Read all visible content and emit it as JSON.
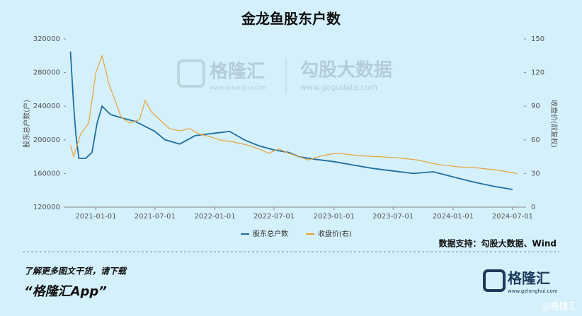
{
  "chart_data": {
    "type": "line",
    "title": "金龙鱼股东户数",
    "y_label": "股东总户数(户)",
    "y2_label": "收盘价(前复权)",
    "xlim": [
      "2020-10-01",
      "2024-08-05"
    ],
    "xticks": [
      "2021-01-01",
      "2021-07-01",
      "2022-01-01",
      "2022-07-01",
      "2023-01-01",
      "2023-07-01",
      "2024-01-01",
      "2024-07-01"
    ],
    "ylim": [
      120000,
      320000
    ],
    "yticks": [
      120000,
      160000,
      200000,
      240000,
      280000,
      320000
    ],
    "y2lim": [
      0,
      150
    ],
    "y2ticks": [
      0,
      30,
      60,
      90,
      120,
      150
    ],
    "legend": "bottom",
    "series": [
      {
        "name": "股东总户数",
        "color": "#1f6f9f",
        "x": [
          "2020-10-15",
          "2020-10-25",
          "2020-11-01",
          "2020-11-10",
          "2020-12-01",
          "2020-12-20",
          "2021-01-05",
          "2021-01-20",
          "2021-02-15",
          "2021-04-01",
          "2021-05-01",
          "2021-06-01",
          "2021-07-01",
          "2021-08-01",
          "2021-09-15",
          "2021-11-01",
          "2022-01-01",
          "2022-02-15",
          "2022-04-01",
          "2022-05-15",
          "2022-07-01",
          "2022-08-15",
          "2022-09-15",
          "2022-11-01",
          "2023-01-01",
          "2023-03-01",
          "2023-05-01",
          "2023-07-01",
          "2023-09-01",
          "2023-11-01",
          "2024-01-01",
          "2024-03-01",
          "2024-05-01",
          "2024-07-01"
        ],
        "values": [
          305000,
          240000,
          205000,
          178000,
          178000,
          185000,
          220000,
          240000,
          230000,
          225000,
          222000,
          216000,
          210000,
          200000,
          195000,
          205000,
          208000,
          210000,
          200000,
          193000,
          188000,
          185000,
          180000,
          177000,
          174000,
          170000,
          166000,
          163000,
          160000,
          162000,
          156000,
          150000,
          145000,
          141000
        ]
      },
      {
        "name": "收盘价(右)",
        "color": "#e8a33a",
        "axis": "y2",
        "x": [
          "2020-10-15",
          "2020-10-25",
          "2020-11-15",
          "2020-12-10",
          "2021-01-01",
          "2021-01-20",
          "2021-02-10",
          "2021-03-01",
          "2021-03-20",
          "2021-04-15",
          "2021-05-15",
          "2021-06-01",
          "2021-06-20",
          "2021-07-15",
          "2021-08-15",
          "2021-09-15",
          "2021-10-15",
          "2021-11-15",
          "2021-12-15",
          "2022-01-15",
          "2022-03-01",
          "2022-04-15",
          "2022-05-15",
          "2022-06-15",
          "2022-07-15",
          "2022-08-15",
          "2022-09-15",
          "2022-10-15",
          "2022-11-15",
          "2022-12-15",
          "2023-01-15",
          "2023-03-15",
          "2023-05-15",
          "2023-07-15",
          "2023-09-15",
          "2023-11-15",
          "2024-01-15",
          "2024-03-15",
          "2024-05-15",
          "2024-07-15"
        ],
        "values": [
          55,
          45,
          65,
          75,
          120,
          135,
          110,
          95,
          80,
          75,
          78,
          95,
          85,
          78,
          70,
          68,
          70,
          65,
          63,
          60,
          58,
          55,
          52,
          48,
          52,
          48,
          45,
          42,
          45,
          47,
          48,
          46,
          45,
          44,
          42,
          38,
          36,
          35,
          33,
          30
        ]
      }
    ]
  },
  "source": "数据支持：勾股大数据、Wind",
  "watermark": {
    "brand": "格隆汇",
    "brand_url": "www.gelonghui.com",
    "partner": "勾股大数据",
    "partner_url": "www.gogudata.com"
  },
  "footer": {
    "line1": "了解更多图文干货，请下载",
    "line2": "“格隆汇App”",
    "logo": "格隆汇",
    "logo_url": "www.gelonghui.com",
    "credit": "@格隆汇"
  }
}
